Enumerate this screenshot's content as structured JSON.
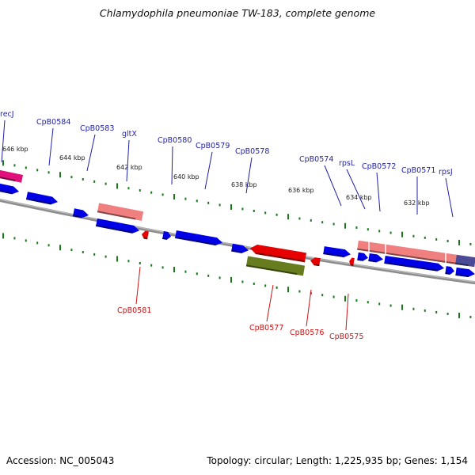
{
  "title": "Chlamydophila pneumoniae TW-183, complete genome",
  "footer": {
    "accession_text": "Accession: NC_005043",
    "info_text": "Topology: circular; Length: 1,225,935 bp; Genes: 1,154"
  },
  "colors": {
    "forward_cds": "#0000e6",
    "reverse_cds": "#e60000",
    "rna_forward": "#f08080",
    "rna_reverse": "#667c1e",
    "hot_pink": "#e0107a",
    "dark_slate": "#4a4a96",
    "backbone": "#8c8c8c",
    "tick_green": "#1a7a1a",
    "label_blue": "#1f1fa8",
    "label_red": "#c81414"
  },
  "scale_labels": [
    "646 kbp",
    "644 kbp",
    "642 kbp",
    "640 kbp",
    "638 kbp",
    "636 kbp",
    "634 kbp",
    "632 kbp"
  ],
  "gene_labels_top": [
    "recJ",
    "CpB0584",
    "CpB0583",
    "gltX",
    "CpB0580",
    "CpB0579",
    "CpB0578",
    "CpB0574",
    "rpsL",
    "CpB0572",
    "CpB0571",
    "rpsJ"
  ],
  "gene_labels_bottom": [
    "CpB0581",
    "CpB0577",
    "CpB0576",
    "CpB0575"
  ]
}
